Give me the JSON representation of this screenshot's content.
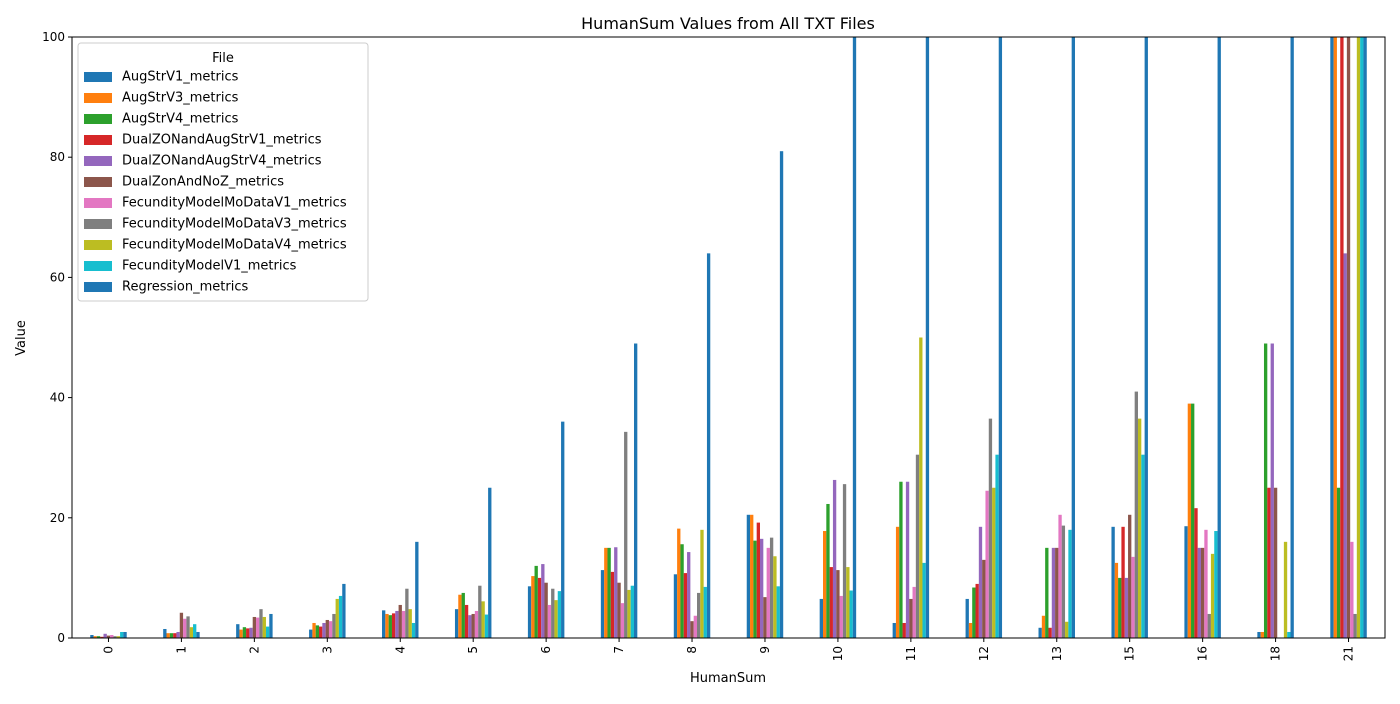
{
  "chart_data": {
    "type": "bar",
    "title": "HumanSum Values from All TXT Files",
    "xlabel": "HumanSum",
    "ylabel": "Value",
    "ylim": [
      0,
      100
    ],
    "yticks": [
      0,
      20,
      40,
      60,
      80,
      100
    ],
    "grid": false,
    "legend": {
      "title": "File",
      "placement": "top-left"
    },
    "categories": [
      "0",
      "1",
      "2",
      "3",
      "4",
      "5",
      "6",
      "7",
      "8",
      "9",
      "10",
      "11",
      "12",
      "13",
      "15",
      "16",
      "18",
      "21"
    ],
    "series": [
      {
        "name": "AugStrV1_metrics",
        "color": "#1f77b4",
        "values": [
          0.5,
          1.5,
          2.3,
          1.4,
          4.6,
          4.8,
          8.6,
          11.3,
          10.6,
          20.5,
          6.5,
          2.5,
          6.5,
          1.7,
          18.5,
          18.6,
          1.0,
          100
        ]
      },
      {
        "name": "AugStrV3_metrics",
        "color": "#ff7f0e",
        "values": [
          0.3,
          0.8,
          1.4,
          2.5,
          4.0,
          7.2,
          10.3,
          15.0,
          18.2,
          20.5,
          17.8,
          18.5,
          2.5,
          3.7,
          12.5,
          39.0,
          1.0,
          100
        ]
      },
      {
        "name": "AugStrV4_metrics",
        "color": "#2ca02c",
        "values": [
          0.3,
          0.8,
          1.8,
          2.1,
          3.8,
          7.5,
          12.0,
          15.0,
          15.6,
          16.2,
          22.3,
          26.0,
          8.4,
          15.0,
          10.0,
          39.0,
          49.0,
          25.0
        ]
      },
      {
        "name": "DualZONandAugStrV1_metrics",
        "color": "#d62728",
        "values": [
          0.2,
          0.8,
          1.6,
          1.9,
          4.1,
          5.5,
          10.0,
          11.0,
          10.8,
          19.2,
          11.8,
          2.5,
          9.0,
          1.7,
          18.5,
          21.6,
          25.0,
          100
        ]
      },
      {
        "name": "DualZONandAugStrV4_metrics",
        "color": "#9467bd",
        "values": [
          0.7,
          1.0,
          1.7,
          2.5,
          4.5,
          3.8,
          12.3,
          15.1,
          14.3,
          16.5,
          26.3,
          26.0,
          18.5,
          15.0,
          10.0,
          15.0,
          49.0,
          64.0
        ]
      },
      {
        "name": "DualZonAndNoZ_metrics",
        "color": "#8c564b",
        "values": [
          0.4,
          4.2,
          3.5,
          3.0,
          5.5,
          4.0,
          9.2,
          9.2,
          2.8,
          6.8,
          11.3,
          6.5,
          13.0,
          15.0,
          20.5,
          15.0,
          25.0,
          100
        ]
      },
      {
        "name": "FecundityModelMoDataV1_metrics",
        "color": "#e377c2",
        "values": [
          0.5,
          3.2,
          3.4,
          2.8,
          4.5,
          4.5,
          5.5,
          5.8,
          3.7,
          15.0,
          7.0,
          8.5,
          24.5,
          20.5,
          13.5,
          18.0,
          0.0,
          16.0
        ]
      },
      {
        "name": "FecundityModelMoDataV3_metrics",
        "color": "#7f7f7f",
        "values": [
          0.3,
          3.6,
          4.8,
          4.0,
          8.2,
          8.7,
          8.2,
          34.3,
          7.5,
          16.7,
          25.6,
          30.5,
          36.5,
          18.7,
          41.0,
          4.0,
          0.0,
          4.0
        ]
      },
      {
        "name": "FecundityModelMoDataV4_metrics",
        "color": "#bcbd22",
        "values": [
          0.3,
          1.8,
          3.5,
          6.5,
          4.8,
          6.1,
          6.3,
          8.0,
          18.0,
          13.6,
          11.8,
          50.0,
          25.0,
          2.7,
          36.5,
          14.0,
          16.0,
          100
        ]
      },
      {
        "name": "FecundityModelV1_metrics",
        "color": "#17becf",
        "values": [
          1.0,
          2.3,
          1.9,
          7.0,
          2.5,
          3.9,
          7.8,
          8.7,
          8.5,
          8.6,
          7.9,
          12.5,
          30.5,
          18.0,
          30.5,
          17.8,
          1.0,
          100
        ]
      },
      {
        "name": "Regression_metrics",
        "color": "#1f77b4",
        "values": [
          1.0,
          1.0,
          4.0,
          9.0,
          16.0,
          25.0,
          36.0,
          49.0,
          64.0,
          81.0,
          100,
          100,
          100,
          100,
          100,
          100,
          100,
          100
        ]
      }
    ]
  }
}
